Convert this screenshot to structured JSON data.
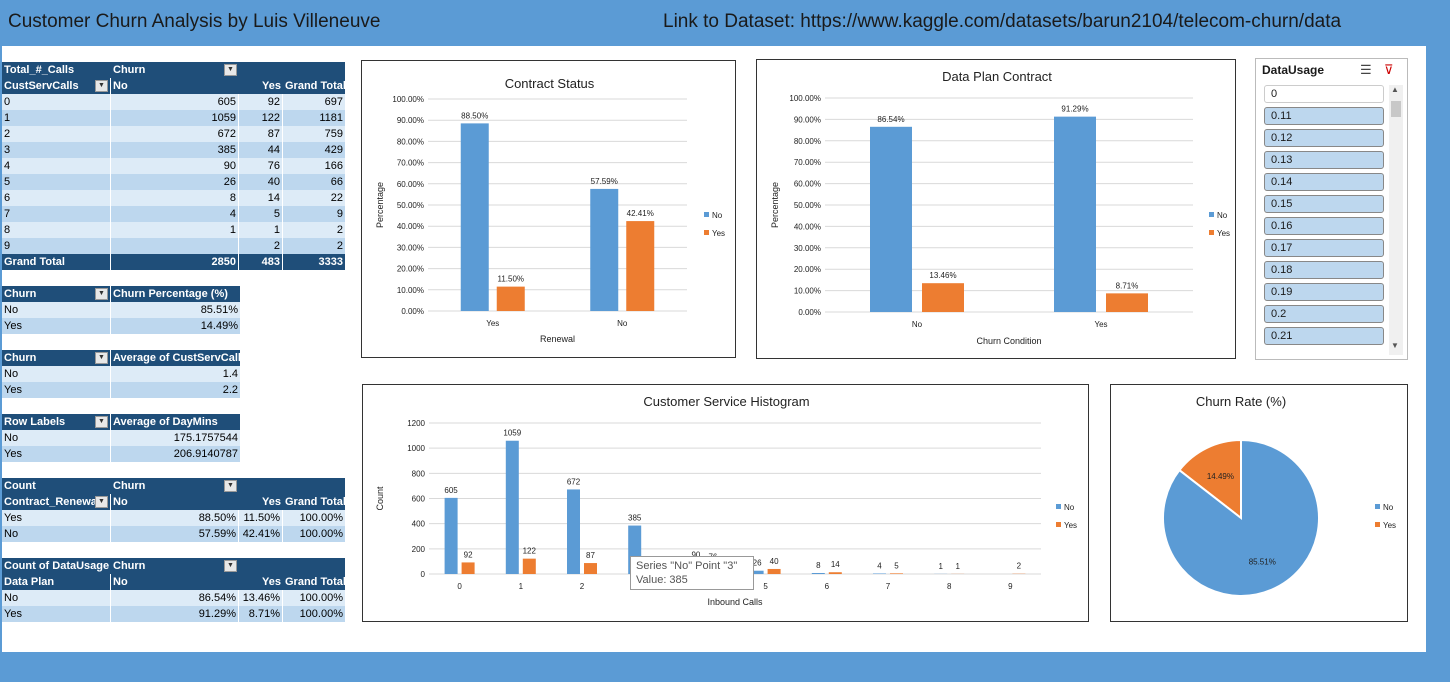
{
  "header": {
    "title": "Customer Churn Analysis by Luis Villeneuve",
    "dataset_link": "Link to Dataset: https://www.kaggle.com/datasets/barun2104/telecom-churn/data"
  },
  "pivot_calls": {
    "h1": [
      "Total_#_Calls",
      "Churn",
      "",
      ""
    ],
    "h2": [
      "CustServCalls",
      "No",
      "Yes",
      "Grand Total"
    ],
    "rows": [
      [
        "0",
        "605",
        "92",
        "697"
      ],
      [
        "1",
        "1059",
        "122",
        "1181"
      ],
      [
        "2",
        "672",
        "87",
        "759"
      ],
      [
        "3",
        "385",
        "44",
        "429"
      ],
      [
        "4",
        "90",
        "76",
        "166"
      ],
      [
        "5",
        "26",
        "40",
        "66"
      ],
      [
        "6",
        "8",
        "14",
        "22"
      ],
      [
        "7",
        "4",
        "5",
        "9"
      ],
      [
        "8",
        "1",
        "1",
        "2"
      ],
      [
        "9",
        "",
        "2",
        "2"
      ]
    ],
    "total": [
      "Grand Total",
      "2850",
      "483",
      "3333"
    ]
  },
  "pivot_churn_pct": {
    "head": [
      "Churn",
      "Churn Percentage (%)"
    ],
    "rows": [
      [
        "No",
        "85.51%"
      ],
      [
        "Yes",
        "14.49%"
      ]
    ]
  },
  "pivot_avg_calls": {
    "head": [
      "Churn",
      "Average of CustServCalls"
    ],
    "rows": [
      [
        "No",
        "1.4"
      ],
      [
        "Yes",
        "2.2"
      ]
    ]
  },
  "pivot_daymins": {
    "head": [
      "Row Labels",
      "Average of DayMins"
    ],
    "rows": [
      [
        "No",
        "175.1757544"
      ],
      [
        "Yes",
        "206.9140787"
      ]
    ]
  },
  "pivot_contract": {
    "h1": [
      "Count",
      "Churn",
      "",
      ""
    ],
    "h2": [
      "Contract_Renewal",
      "No",
      "Yes",
      "Grand Total"
    ],
    "rows": [
      [
        "Yes",
        "88.50%",
        "11.50%",
        "100.00%"
      ],
      [
        "No",
        "57.59%",
        "42.41%",
        "100.00%"
      ]
    ]
  },
  "pivot_dataplan": {
    "h1": [
      "Count of DataUsage",
      "Churn",
      "",
      ""
    ],
    "h2": [
      "Data Plan",
      "No",
      "Yes",
      "Grand Total"
    ],
    "rows": [
      [
        "No",
        "86.54%",
        "13.46%",
        "100.00%"
      ],
      [
        "Yes",
        "91.29%",
        "8.71%",
        "100.00%"
      ]
    ]
  },
  "slicer": {
    "title": "DataUsage",
    "items": [
      "0",
      "0.11",
      "0.12",
      "0.13",
      "0.14",
      "0.15",
      "0.16",
      "0.17",
      "0.18",
      "0.19",
      "0.2",
      "0.21"
    ],
    "icons": [
      "multi-select-icon",
      "clear-filter-icon"
    ]
  },
  "tooltip": {
    "line1": "Series \"No\" Point \"3\"",
    "line2": "Value: 385"
  },
  "colors": {
    "no": "#5b9bd5",
    "yes": "#ed7d31",
    "header": "#1f4e79",
    "band_light": "#ddebf7",
    "band_mid": "#bdd7ee"
  },
  "chart_data": [
    {
      "type": "bar",
      "title": "Contract Status",
      "xlabel": "Renewal",
      "ylabel": "Percentage",
      "categories": [
        "Yes",
        "No"
      ],
      "series": [
        {
          "name": "No",
          "values": [
            88.5,
            57.59
          ],
          "labels": [
            "88.50%",
            "57.59%"
          ]
        },
        {
          "name": "Yes",
          "values": [
            11.5,
            42.41
          ],
          "labels": [
            "11.50%",
            "42.41%"
          ]
        }
      ],
      "ylim": [
        0,
        100
      ],
      "yticks": [
        "0.00%",
        "10.00%",
        "20.00%",
        "30.00%",
        "40.00%",
        "50.00%",
        "60.00%",
        "70.00%",
        "80.00%",
        "90.00%",
        "100.00%"
      ],
      "grid": true,
      "legend": "right"
    },
    {
      "type": "bar",
      "title": "Data Plan Contract",
      "xlabel": "Churn Condition",
      "ylabel": "Percentage",
      "categories": [
        "No",
        "Yes"
      ],
      "series": [
        {
          "name": "No",
          "values": [
            86.54,
            91.29
          ],
          "labels": [
            "86.54%",
            "91.29%"
          ]
        },
        {
          "name": "Yes",
          "values": [
            13.46,
            8.71
          ],
          "labels": [
            "13.46%",
            "8.71%"
          ]
        }
      ],
      "ylim": [
        0,
        100
      ],
      "yticks": [
        "0.00%",
        "10.00%",
        "20.00%",
        "30.00%",
        "40.00%",
        "50.00%",
        "60.00%",
        "70.00%",
        "80.00%",
        "90.00%",
        "100.00%"
      ],
      "grid": true,
      "legend": "right"
    },
    {
      "type": "bar",
      "title": "Customer Service Histogram",
      "xlabel": "Inbound Calls",
      "ylabel": "Count",
      "categories": [
        "0",
        "1",
        "2",
        "3",
        "4",
        "5",
        "6",
        "7",
        "8",
        "9"
      ],
      "series": [
        {
          "name": "No",
          "values": [
            605,
            1059,
            672,
            385,
            90,
            26,
            8,
            4,
            1,
            0
          ],
          "labels": [
            "605",
            "1059",
            "672",
            "385",
            "90",
            "26",
            "8",
            "4",
            "1",
            ""
          ]
        },
        {
          "name": "Yes",
          "values": [
            92,
            122,
            87,
            44,
            76,
            40,
            14,
            5,
            1,
            2
          ],
          "labels": [
            "92",
            "122",
            "87",
            "44",
            "76",
            "40",
            "14",
            "5",
            "1",
            "2"
          ]
        }
      ],
      "ylim": [
        0,
        1200
      ],
      "yticks": [
        "0",
        "200",
        "400",
        "600",
        "800",
        "1000",
        "1200"
      ],
      "grid": true,
      "legend": "right"
    },
    {
      "type": "pie",
      "title": "Churn Rate (%)",
      "categories": [
        "No",
        "Yes"
      ],
      "values": [
        85.51,
        14.49
      ],
      "labels": [
        "85.51%",
        "14.49%"
      ],
      "legend": "right"
    }
  ]
}
